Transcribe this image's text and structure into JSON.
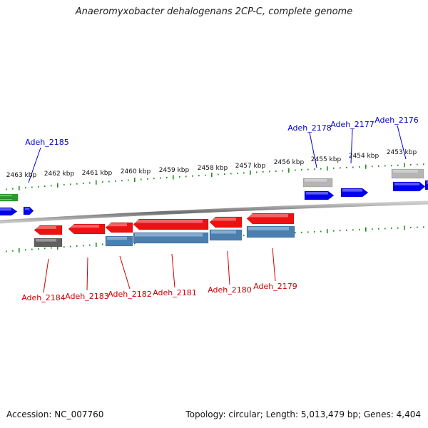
{
  "title": "Anaeromyxobacter dehalogenans 2CP-C, complete genome",
  "footer": {
    "accession": "Accession: NC_007760",
    "summary": "Topology: circular; Length: 5,013,479 bp; Genes: 4,404"
  },
  "colors": {
    "forward_gene": "#0000ee",
    "reverse_gene": "#ee1111",
    "cds_steel": "#4a7fb0",
    "pseudo_gray": "#b5b5b5",
    "dark_gray": "#606060",
    "rna_green": "#2e9e2e",
    "tick_green": "#228b22",
    "label_forward": "#0000cc",
    "label_reverse": "#cc0000"
  },
  "ruler_labels": [
    "2463 kbp",
    "2462 kbp",
    "2461 kbp",
    "2460 kbp",
    "2459 kbp",
    "2458 kbp",
    "2457 kbp",
    "2456 kbp",
    "2455 kbp",
    "2454 kbp",
    "2453 kbp"
  ],
  "genes": {
    "forward": [
      "Adeh_2185",
      "Adeh_2178",
      "Adeh_2177",
      "Adeh_2176"
    ],
    "reverse": [
      "Adeh_2184",
      "Adeh_2183",
      "Adeh_2182",
      "Adeh_2181",
      "Adeh_2180",
      "Adeh_2179"
    ]
  }
}
